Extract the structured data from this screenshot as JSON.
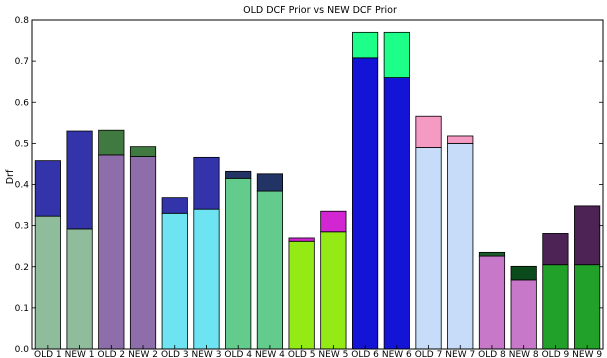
{
  "chart_data": {
    "type": "bar",
    "stacked": true,
    "title": "OLD DCF Prior vs NEW DCF Prior",
    "ylabel": "Drf",
    "xlabel": "",
    "ylim": [
      0,
      0.8
    ],
    "yticks": [
      "0.0",
      "0.1",
      "0.2",
      "0.3",
      "0.4",
      "0.5",
      "0.6",
      "0.7",
      "0.8"
    ],
    "grid": false,
    "categories": [
      "OLD 1",
      "NEW 1",
      "OLD 2",
      "NEW 2",
      "OLD 3",
      "NEW 3",
      "OLD 4",
      "NEW 4",
      "OLD 5",
      "NEW 5",
      "OLD 6",
      "NEW 6",
      "OLD 7",
      "NEW 7",
      "OLD 8",
      "NEW 8",
      "OLD 9",
      "NEW 9"
    ],
    "bottom_values": [
      0.323,
      0.292,
      0.472,
      0.468,
      0.33,
      0.34,
      0.415,
      0.384,
      0.262,
      0.285,
      0.708,
      0.66,
      0.49,
      0.5,
      0.226,
      0.168,
      0.205,
      0.205
    ],
    "top_values": [
      0.458,
      0.53,
      0.532,
      0.492,
      0.368,
      0.466,
      0.432,
      0.426,
      0.27,
      0.335,
      0.77,
      0.77,
      0.566,
      0.518,
      0.235,
      0.201,
      0.281,
      0.348
    ],
    "bottom_colors": [
      "#8fbc9b",
      "#8fbc9b",
      "#8e6dab",
      "#8e6dab",
      "#6ee4f2",
      "#6ee4f2",
      "#63cc8c",
      "#63cc8c",
      "#94ea15",
      "#94ea15",
      "#1414d6",
      "#1414d6",
      "#c6dcf9",
      "#c6dcf9",
      "#c878c8",
      "#c878c8",
      "#22a12a",
      "#22a12a"
    ],
    "top_colors": [
      "#3333aa",
      "#3333aa",
      "#407a40",
      "#407a40",
      "#3333aa",
      "#3333aa",
      "#223366",
      "#223366",
      "#d126d1",
      "#d126d1",
      "#1eff8a",
      "#1eff8a",
      "#f59ac2",
      "#f59ac2",
      "#1d5a2a",
      "#0b4a1a",
      "#4d2255",
      "#4d2255"
    ]
  }
}
